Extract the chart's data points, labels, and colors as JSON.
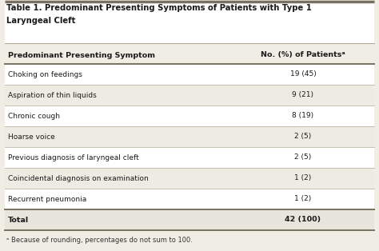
{
  "title_line1": "Table 1. Predominant Presenting Symptoms of Patients with Type 1",
  "title_line2": "Laryngeal Cleft",
  "col1_header": "Predominant Presenting Symptom",
  "col2_header": "No. (%) of Patientsᵃ",
  "rows": [
    [
      "Choking on feedings",
      "19 (45)"
    ],
    [
      "Aspiration of thin liquids",
      "9 (21)"
    ],
    [
      "Chronic cough",
      "8 (19)"
    ],
    [
      "Hoarse voice",
      "2 (5)"
    ],
    [
      "Previous diagnosis of laryngeal cleft",
      "2 (5)"
    ],
    [
      "Coincidental diagnosis on examination",
      "1 (2)"
    ],
    [
      "Recurrent pneumonia",
      "1 (2)"
    ]
  ],
  "total_row": [
    "Total",
    "42 (100)"
  ],
  "footnote": "ᵃ Because of rounding, percentages do not sum to 100.",
  "bg_color": "#f0ede4",
  "title_bg": "#ffffff",
  "header_bg": "#f0ede4",
  "row_bg_white": "#ffffff",
  "row_bg_light": "#eeebe2",
  "total_bg": "#e8e5dc",
  "divider_color": "#b0aa98",
  "top_border_color": "#7a7060",
  "text_color": "#1a1a1a",
  "footnote_color": "#333333"
}
